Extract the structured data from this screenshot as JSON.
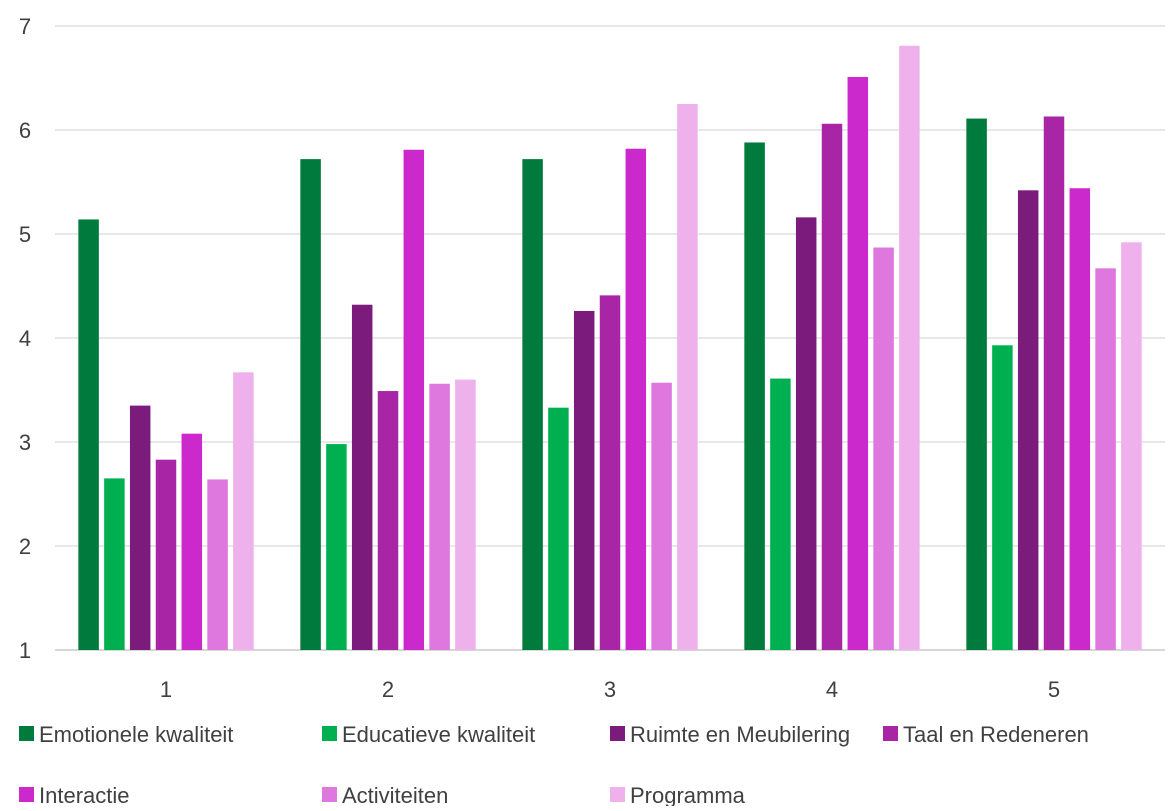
{
  "chart_data": {
    "type": "bar",
    "title": "",
    "xlabel": "",
    "ylabel": "",
    "ylim": [
      1,
      7
    ],
    "yticks": [
      1,
      2,
      3,
      4,
      5,
      6,
      7
    ],
    "grid": true,
    "legend_position": "bottom",
    "categories": [
      "1",
      "2",
      "3",
      "4",
      "5"
    ],
    "series": [
      {
        "name": "Emotionele kwaliteit",
        "color": "#007A3D",
        "values": [
          5.14,
          5.72,
          5.72,
          5.88,
          6.11
        ]
      },
      {
        "name": "Educatieve kwaliteit",
        "color": "#00B050",
        "values": [
          2.65,
          2.98,
          3.33,
          3.61,
          3.93
        ]
      },
      {
        "name": "Ruimte en Meubilering",
        "color": "#7B1C7D",
        "values": [
          3.35,
          4.32,
          4.26,
          5.16,
          5.42
        ]
      },
      {
        "name": "Taal en Redeneren",
        "color": "#A826A6",
        "values": [
          2.83,
          3.49,
          4.41,
          6.06,
          6.13
        ]
      },
      {
        "name": "Interactie",
        "color": "#CC29CC",
        "values": [
          3.08,
          5.81,
          5.82,
          6.51,
          5.44
        ]
      },
      {
        "name": "Activiteiten",
        "color": "#DE78DE",
        "values": [
          2.64,
          3.56,
          3.57,
          4.87,
          4.67
        ]
      },
      {
        "name": "Programma",
        "color": "#EEB1EC",
        "values": [
          3.67,
          3.6,
          6.25,
          6.81,
          4.92
        ]
      }
    ]
  }
}
